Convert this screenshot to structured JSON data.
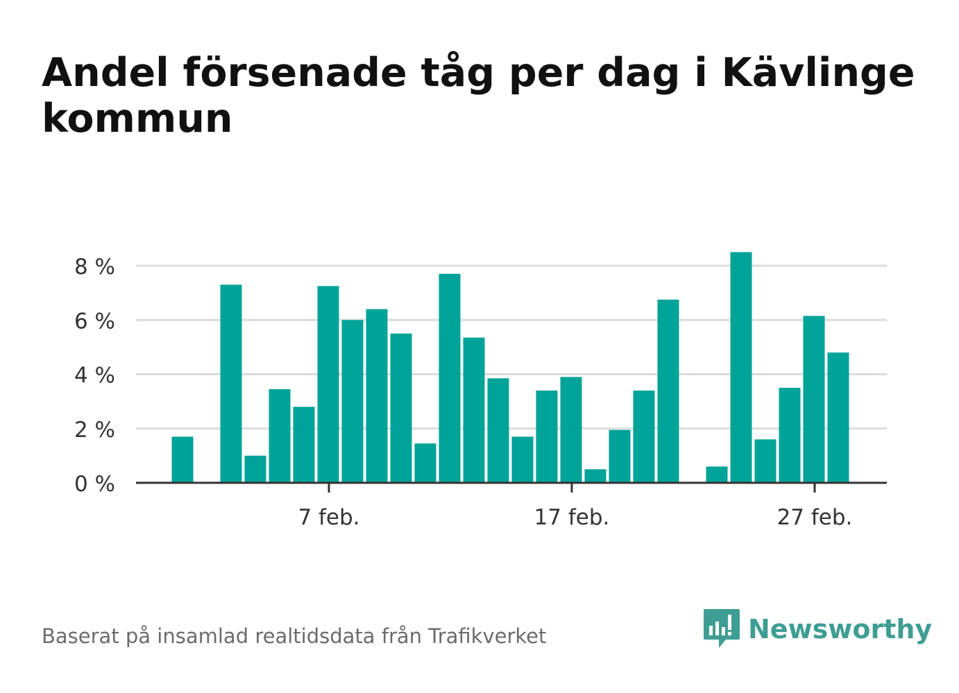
{
  "title": "Andel försenade tåg per dag i Kävlinge kommun",
  "source": "Baserat på insamlad realtidsdata från Trafikverket",
  "logo": {
    "text": "Newsworthy",
    "color": "#3f9e93"
  },
  "colors": {
    "bar": "#00a398",
    "grid": "#dcdcdc",
    "axis": "#333333"
  },
  "chart_data": {
    "type": "bar",
    "title": "Andel försenade tåg per dag i Kävlinge kommun",
    "xlabel": "",
    "ylabel": "",
    "ylim": [
      0,
      8.8
    ],
    "y_ticks": [
      0,
      2,
      4,
      6,
      8
    ],
    "y_tick_labels": [
      "0 %",
      "2 %",
      "4 %",
      "6 %",
      "8 %"
    ],
    "x_tick_labels": [
      {
        "day": 7,
        "label": "7 feb."
      },
      {
        "day": 17,
        "label": "17 feb."
      },
      {
        "day": 27,
        "label": "27 feb."
      }
    ],
    "categories": [
      "1 feb.",
      "2 feb.",
      "3 feb.",
      "4 feb.",
      "5 feb.",
      "6 feb.",
      "7 feb.",
      "8 feb.",
      "9 feb.",
      "10 feb.",
      "11 feb.",
      "12 feb.",
      "13 feb.",
      "14 feb.",
      "15 feb.",
      "16 feb.",
      "17 feb.",
      "18 feb.",
      "19 feb.",
      "20 feb.",
      "21 feb.",
      "22 feb.",
      "23 feb.",
      "24 feb.",
      "25 feb.",
      "26 feb.",
      "27 feb.",
      "28 feb."
    ],
    "values": [
      1.7,
      null,
      7.3,
      1.0,
      3.45,
      2.8,
      7.25,
      6.0,
      6.4,
      5.5,
      1.45,
      7.7,
      5.35,
      3.85,
      1.7,
      3.4,
      3.9,
      0.5,
      1.95,
      3.4,
      6.75,
      null,
      0.6,
      8.5,
      1.6,
      3.5,
      6.15,
      4.8
    ],
    "grid": true,
    "legend": "none"
  }
}
